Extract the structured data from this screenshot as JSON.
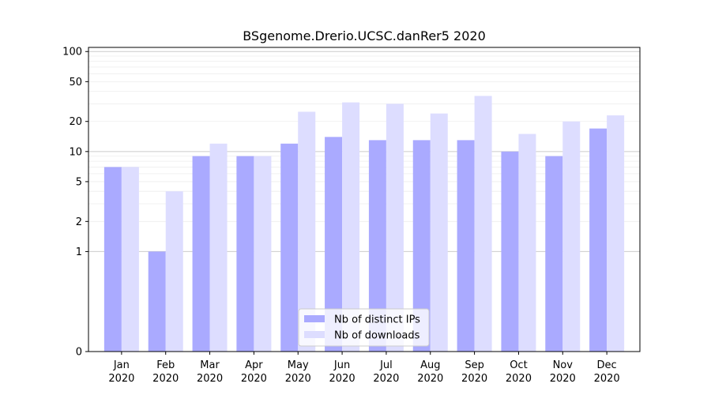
{
  "chart_data": {
    "type": "bar",
    "title": "BSgenome.Drerio.UCSC.danRer5 2020",
    "xlabel": "",
    "ylabel": "",
    "y_scale": "symlog",
    "ylim": [
      0,
      110
    ],
    "y_ticks": [
      0,
      1,
      2,
      5,
      10,
      20,
      50,
      100
    ],
    "y_tick_labels": [
      "0",
      "1",
      "2",
      "5",
      "10",
      "20",
      "50",
      "100"
    ],
    "grid": true,
    "legend_position": "bottom-center",
    "categories": [
      "Jan",
      "Feb",
      "Mar",
      "Apr",
      "May",
      "Jun",
      "Jul",
      "Aug",
      "Sep",
      "Oct",
      "Nov",
      "Dec"
    ],
    "category_sublabel": "2020",
    "series": [
      {
        "name": "Nb of distinct IPs",
        "color": "#aaaaff",
        "values": [
          7,
          1,
          9,
          9,
          12,
          14,
          13,
          13,
          13,
          10,
          9,
          17
        ]
      },
      {
        "name": "Nb of downloads",
        "color": "#ddddff",
        "values": [
          7,
          4,
          12,
          9,
          25,
          31,
          30,
          24,
          36,
          15,
          20,
          23
        ]
      }
    ]
  }
}
